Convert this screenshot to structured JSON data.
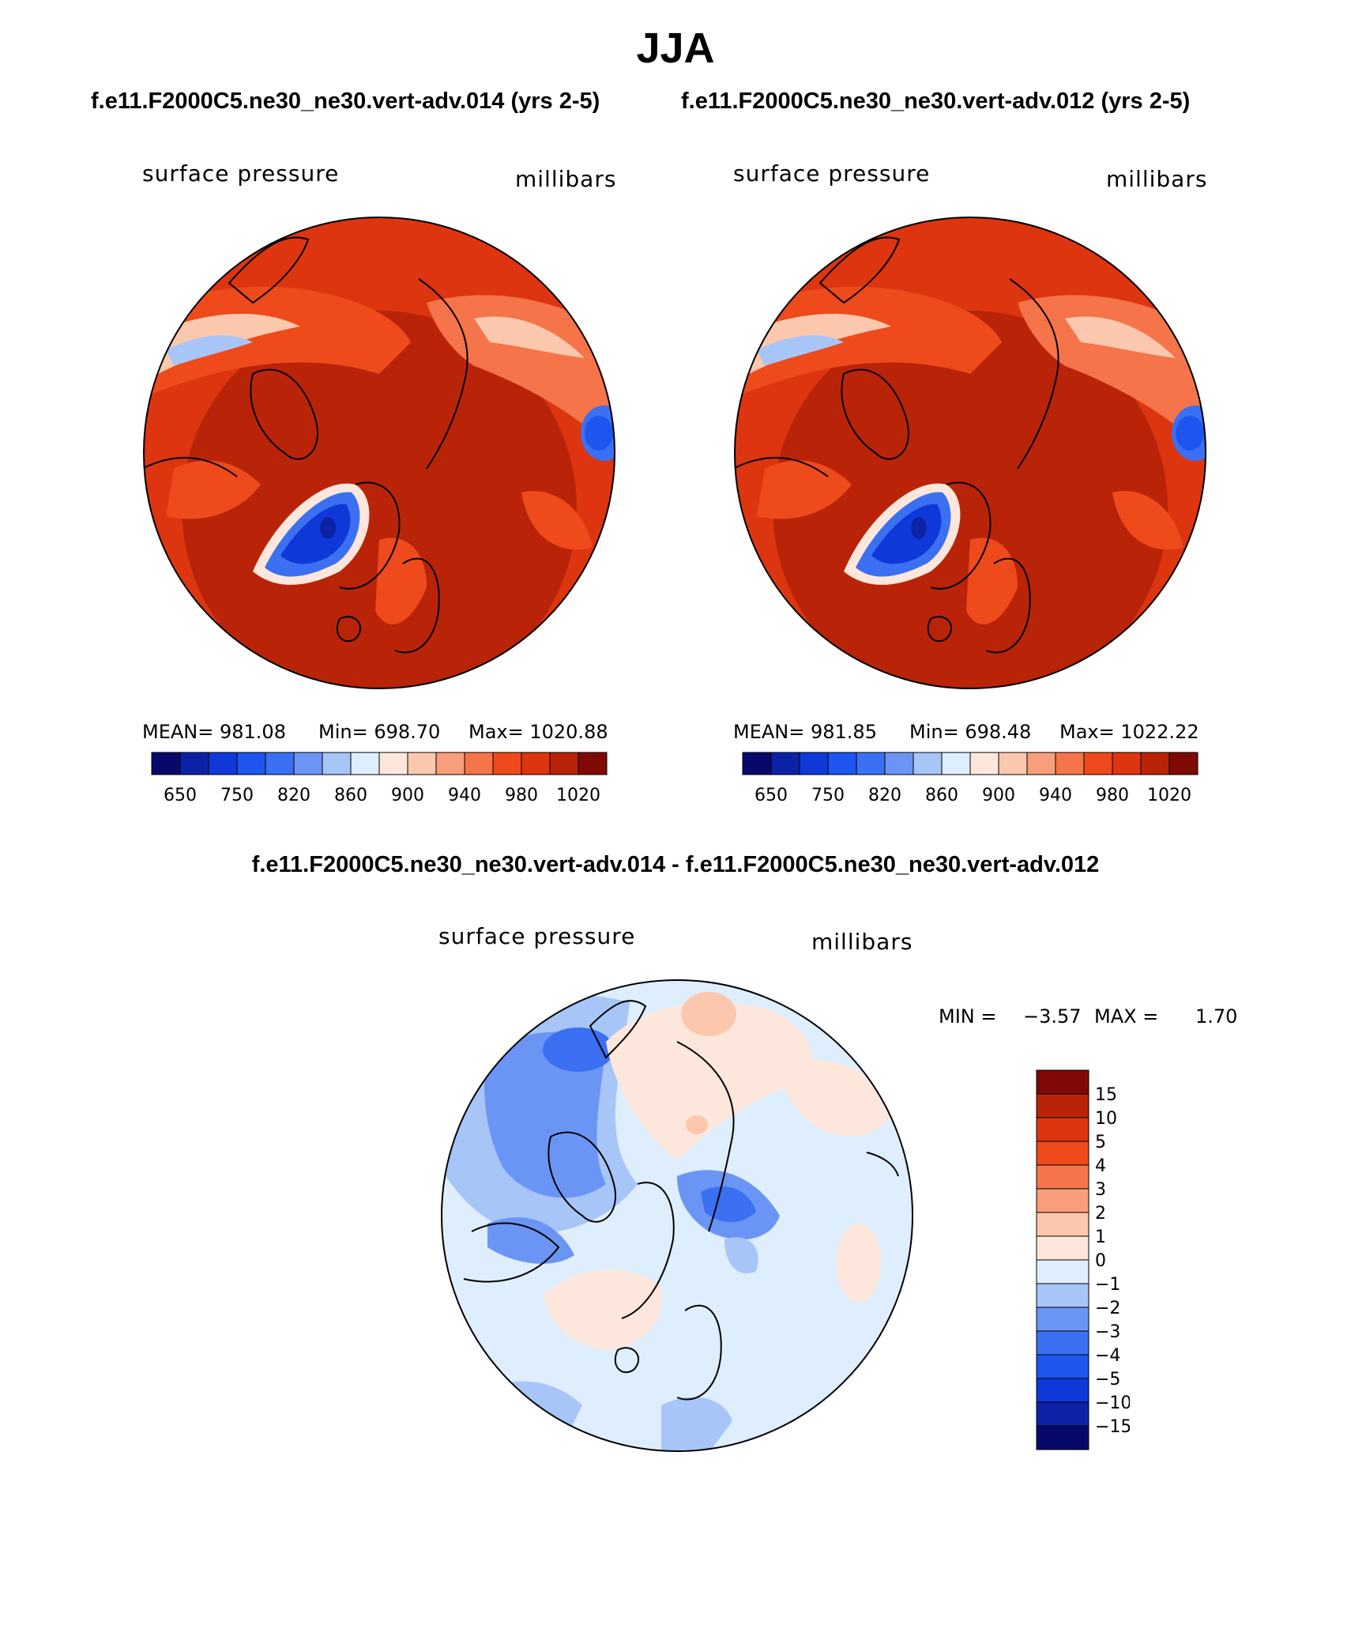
{
  "title": "JJA",
  "case_titles": {
    "left": "f.e11.F2000C5.ne30_ne30.vert-adv.014 (yrs 2-5)",
    "right": "f.e11.F2000C5.ne30_ne30.vert-adv.012 (yrs 2-5)"
  },
  "diff_title": "f.e11.F2000C5.ne30_ne30.vert-adv.014 - f.e11.F2000C5.ne30_ne30.vert-adv.012",
  "panels": [
    {
      "variable": "surface pressure",
      "units": "millibars",
      "mean_label": "MEAN= 981.08",
      "min_label": "Min= 698.70",
      "max_label": "Max= 1020.88"
    },
    {
      "variable": "surface pressure",
      "units": "millibars",
      "mean_label": "MEAN= 981.85",
      "min_label": "Min= 698.48",
      "max_label": "Max= 1022.22"
    }
  ],
  "diff_panel": {
    "variable": "surface pressure",
    "units": "millibars",
    "min_label": "MIN =",
    "min_value": "−3.57",
    "max_label": "MAX =",
    "max_value": "1.70"
  },
  "colorbar_abs": {
    "colors": [
      "#08086b",
      "#0c22a6",
      "#0f38d8",
      "#1e55ef",
      "#3b70f2",
      "#6b95f4",
      "#a8c5f8",
      "#deeefc",
      "#fde7dc",
      "#fbc8ad",
      "#f89e7a",
      "#f57449",
      "#ee4a1c",
      "#dd3510",
      "#b92408",
      "#7f0a05"
    ],
    "labels": [
      "650",
      "750",
      "820",
      "860",
      "900",
      "940",
      "980",
      "1020"
    ]
  },
  "colorbar_diff": {
    "colors": [
      "#08086b",
      "#0c22a6",
      "#0f38d8",
      "#1e55ef",
      "#3b70f2",
      "#6b95f4",
      "#a8c5f8",
      "#deeefc",
      "#fde7dc",
      "#fbc8ad",
      "#f89e7a",
      "#f57449",
      "#ee4a1c",
      "#dd3510",
      "#b92408",
      "#7f0a05"
    ],
    "labels": [
      "−15",
      "−10",
      "−5",
      "−4",
      "−3",
      "−2",
      "−1",
      "0",
      "1",
      "2",
      "3",
      "4",
      "5",
      "10",
      "15"
    ]
  }
}
